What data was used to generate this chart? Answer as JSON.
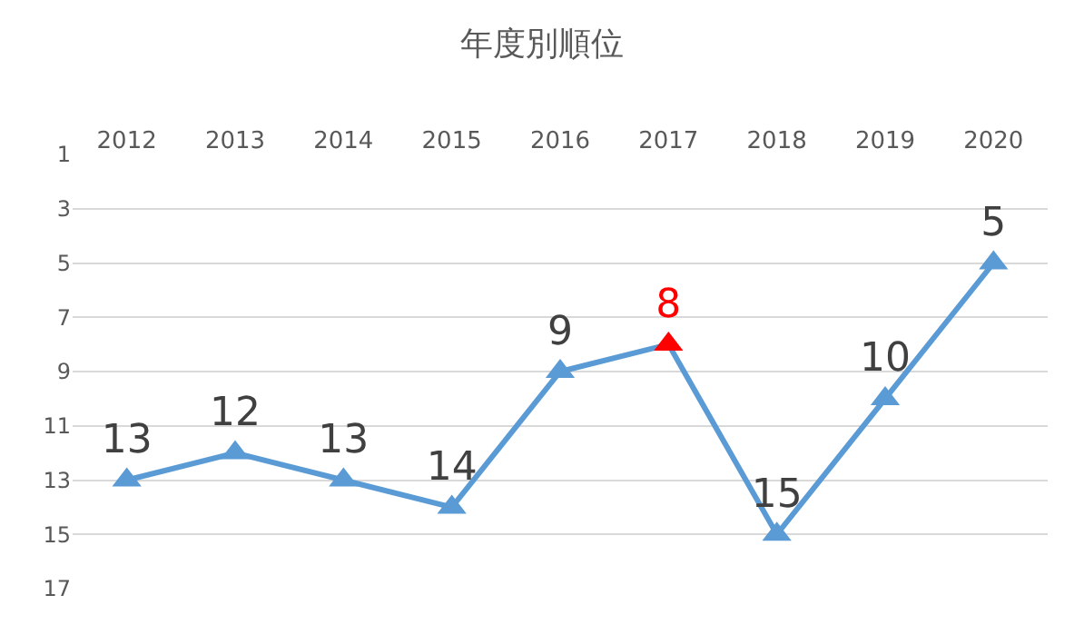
{
  "chart_data": {
    "type": "line",
    "title": "年度別順位",
    "categories": [
      "2012",
      "2013",
      "2014",
      "2015",
      "2016",
      "2017",
      "2018",
      "2019",
      "2020"
    ],
    "series": [
      {
        "color": "#5b9bd5",
        "values": [
          13,
          12,
          13,
          14,
          9,
          8,
          15,
          10,
          5
        ],
        "colors": [
          "#5b9bd5",
          "#5b9bd5",
          "#5b9bd5",
          "#5b9bd5",
          "#5b9bd5",
          "#ff0000",
          "#5b9bd5",
          "#5b9bd5",
          "#5b9bd5"
        ]
      }
    ],
    "ylim": [
      17,
      1
    ],
    "yticks": [
      1,
      3,
      5,
      7,
      9,
      11,
      13,
      15,
      17
    ],
    "grid": "y",
    "marker": "triangle",
    "line_style": "solid",
    "data_labels": true
  }
}
